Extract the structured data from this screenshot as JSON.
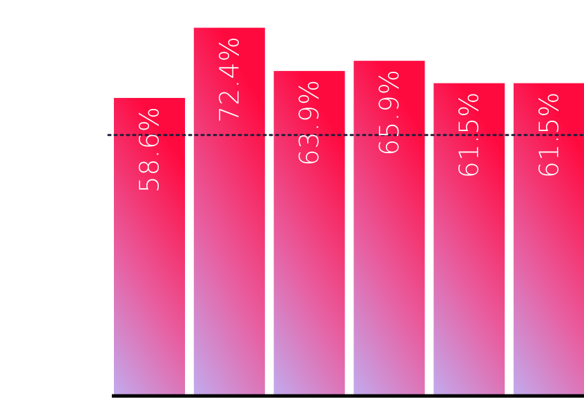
{
  "chart_data": {
    "type": "bar",
    "categories": [
      "",
      "",
      "",
      "",
      "",
      ""
    ],
    "values": [
      58.6,
      72.4,
      63.9,
      65.9,
      61.5,
      61.5
    ],
    "data_labels": [
      "58.6%",
      "72.4%",
      "63.9%",
      "65.9%",
      "61.5%",
      "61.5%"
    ],
    "reference_line": 51.3,
    "ylim": [
      0,
      76.5
    ],
    "title": "",
    "xlabel": "",
    "ylabel": "",
    "grid": false,
    "colors": {
      "bar_top": "#ff0a3f",
      "bar_mid": "#e85ea0",
      "bar_bottom": "#c2abee",
      "reference_line": "#1f1d3a",
      "baseline": "#000000"
    }
  }
}
